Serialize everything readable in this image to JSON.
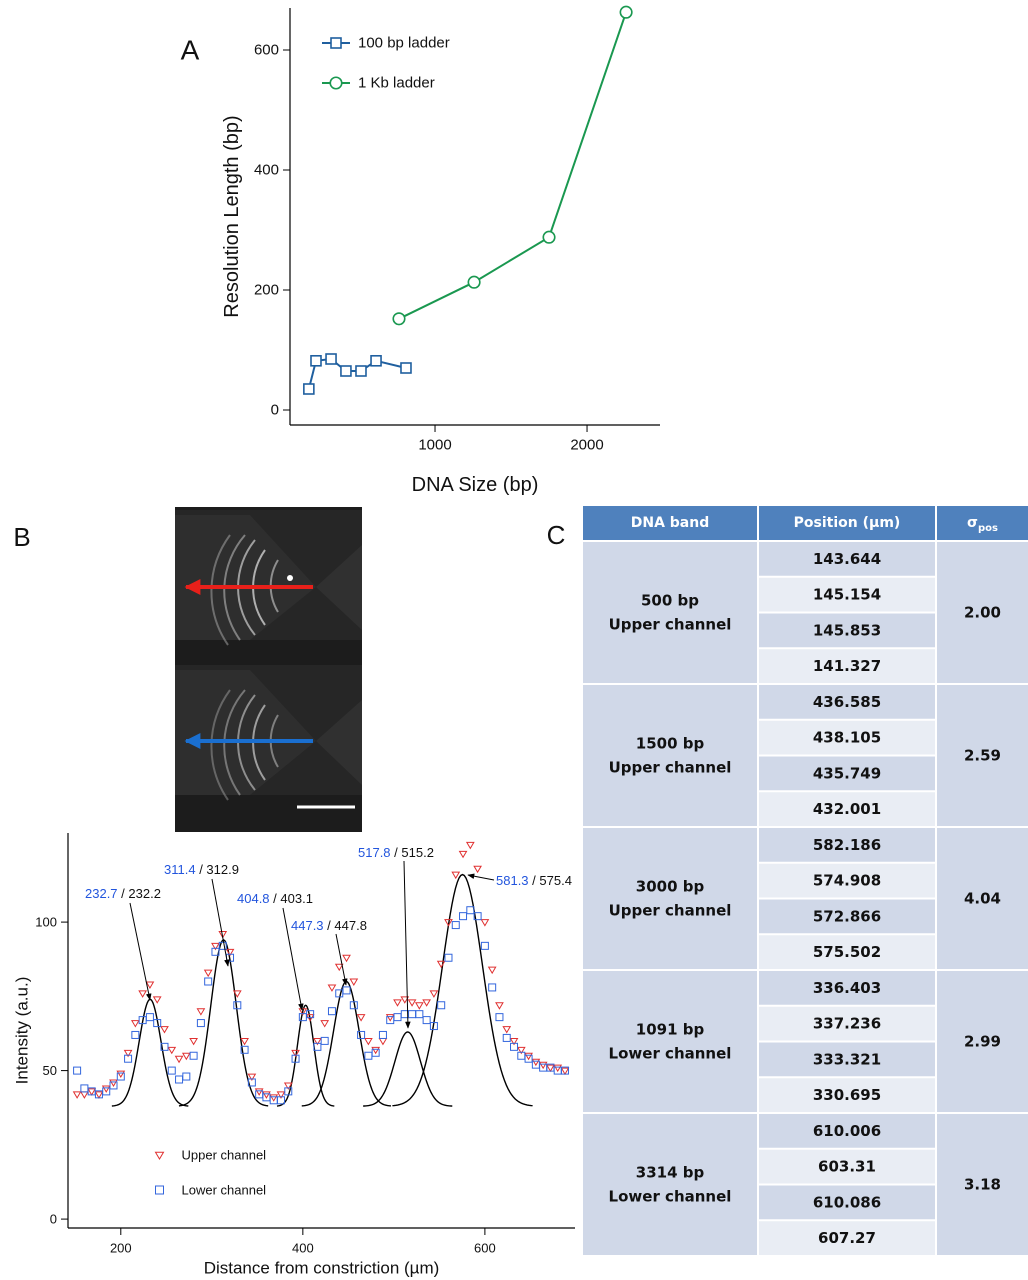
{
  "chart_data": [
    {
      "type": "line",
      "panel": "A",
      "x_label": "DNA Size (bp)",
      "y_label": "Resolution Length (bp)",
      "xlim": [
        46,
        2480
      ],
      "ylim": [
        -25,
        670
      ],
      "xticks": [
        1000,
        2000
      ],
      "yticks": [
        0,
        200,
        400,
        600
      ],
      "legend": "upper left",
      "series": [
        {
          "name": "100 bp ladder",
          "color": "#1f5f9f",
          "marker": "square",
          "x": [
            170,
            217,
            316,
            414,
            513,
            612,
            809
          ],
          "values": [
            35,
            82,
            85,
            65,
            65,
            82,
            70
          ]
        },
        {
          "name": "1 Kb ladder",
          "color": "#1a9850",
          "marker": "circle",
          "x": [
            763,
            1257,
            1750,
            2257
          ],
          "values": [
            152,
            213,
            288,
            663
          ]
        }
      ]
    },
    {
      "type": "scatter",
      "panel": "B",
      "x_label": "Distance from constriction (µm)",
      "y_label": "Intensity (a.u.)",
      "xlim": [
        142,
        699
      ],
      "ylim": [
        -3,
        130
      ],
      "xticks": [
        200,
        400,
        600
      ],
      "yticks": [
        0,
        50,
        100
      ],
      "legend": "lower center",
      "x": [
        152,
        160,
        168,
        176,
        184,
        192,
        200,
        208,
        216,
        224,
        232,
        240,
        248,
        256,
        264,
        272,
        280,
        288,
        296,
        304,
        312,
        320,
        328,
        336,
        344,
        352,
        360,
        368,
        376,
        384,
        392,
        400,
        408,
        416,
        424,
        432,
        440,
        448,
        456,
        464,
        472,
        480,
        488,
        496,
        504,
        512,
        520,
        528,
        536,
        544,
        552,
        560,
        568,
        576,
        584,
        592,
        600,
        608,
        616,
        624,
        632,
        640,
        648,
        656,
        664,
        672,
        680,
        688
      ],
      "series": [
        {
          "name": "Upper channel",
          "color": "#e03030",
          "marker": "triangle-down",
          "values": [
            42,
            42,
            43,
            42,
            44,
            46,
            49,
            56,
            66,
            76,
            79,
            74,
            64,
            57,
            54,
            55,
            60,
            70,
            83,
            92,
            96,
            90,
            76,
            60,
            48,
            43,
            42,
            41,
            42,
            45,
            56,
            70,
            68,
            60,
            66,
            78,
            85,
            88,
            80,
            68,
            60,
            57,
            60,
            68,
            73,
            74,
            73,
            72,
            73,
            76,
            86,
            100,
            116,
            123,
            126,
            118,
            100,
            84,
            72,
            64,
            60,
            57,
            55,
            53,
            52,
            51,
            51,
            50
          ]
        },
        {
          "name": "Lower channel",
          "color": "#3366dd",
          "marker": "square",
          "values": [
            50,
            44,
            43,
            42,
            43,
            45,
            48,
            54,
            62,
            67,
            68,
            66,
            58,
            50,
            47,
            48,
            55,
            66,
            80,
            90,
            92,
            88,
            72,
            57,
            46,
            42,
            41,
            40,
            40,
            43,
            54,
            68,
            69,
            58,
            60,
            70,
            76,
            77,
            72,
            62,
            55,
            56,
            62,
            67,
            68,
            69,
            69,
            69,
            67,
            65,
            72,
            88,
            99,
            102,
            104,
            102,
            92,
            78,
            68,
            61,
            58,
            55,
            54,
            52,
            51,
            51,
            50,
            50
          ]
        }
      ],
      "fits": [
        {
          "center": 232.2,
          "peak": 74,
          "sigma": 12
        },
        {
          "center": 312.9,
          "peak": 94,
          "sigma": 14
        },
        {
          "center": 403.1,
          "peak": 72,
          "sigma": 9
        },
        {
          "center": 447.8,
          "peak": 80,
          "sigma": 14
        },
        {
          "center": 515.2,
          "peak": 63,
          "sigma": 14
        },
        {
          "center": 575.4,
          "peak": 116,
          "sigma": 22
        }
      ],
      "fit_baseline": 38,
      "fit_color": "#000000",
      "peak_labels": [
        {
          "lower": "232.7",
          "fit": "232.2"
        },
        {
          "lower": "311.4",
          "fit": "312.9"
        },
        {
          "lower": "404.8",
          "fit": "403.1"
        },
        {
          "lower": "447.3",
          "fit": "447.8"
        },
        {
          "lower": "517.8",
          "fit": "515.2"
        },
        {
          "lower": "581.3",
          "fit": "575.4"
        }
      ],
      "label_separator": " / ",
      "label_color": "#2255dd"
    }
  ],
  "table": {
    "panel": "C",
    "header_color": "#4f81bd",
    "cell_color": "#d0d8e8",
    "alt_color": "#e9edf4",
    "header": [
      "DNA band",
      "Position (µm)",
      {
        "symbol": "σ",
        "subscript": "pos"
      }
    ],
    "groups": [
      {
        "band": [
          "500 bp",
          "Upper channel"
        ],
        "positions": [
          "143.644",
          "145.154",
          "145.853",
          "141.327"
        ],
        "sigma": "2.00"
      },
      {
        "band": [
          "1500 bp",
          "Upper channel"
        ],
        "positions": [
          "436.585",
          "438.105",
          "435.749",
          "432.001"
        ],
        "sigma": "2.59"
      },
      {
        "band": [
          "3000 bp",
          "Upper channel"
        ],
        "positions": [
          "582.186",
          "574.908",
          "572.866",
          "575.502"
        ],
        "sigma": "4.04"
      },
      {
        "band": [
          "1091 bp",
          "Lower channel"
        ],
        "positions": [
          "336.403",
          "337.236",
          "333.321",
          "330.695"
        ],
        "sigma": "2.99"
      },
      {
        "band": [
          "3314 bp",
          "Lower channel"
        ],
        "positions": [
          "610.006",
          "603.31",
          "610.086",
          "607.27"
        ],
        "sigma": "3.18"
      }
    ]
  }
}
